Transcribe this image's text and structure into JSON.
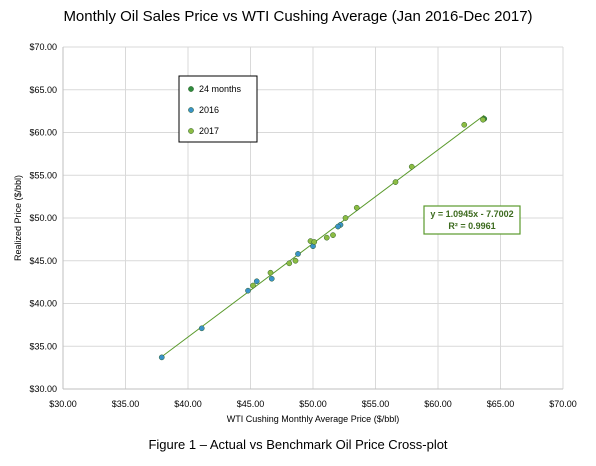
{
  "chart_data": {
    "type": "scatter",
    "title": "Monthly Oil Sales Price vs WTI Cushing Average (Jan 2016-Dec 2017)",
    "xlabel": "WTI Cushing Monthly Average Price ($/bbl)",
    "ylabel": "Realized Price ($/bbl)",
    "xlim": [
      30,
      70
    ],
    "ylim": [
      30,
      70
    ],
    "x_ticks": [
      30,
      35,
      40,
      45,
      50,
      55,
      60,
      65,
      70
    ],
    "y_ticks": [
      30,
      35,
      40,
      45,
      50,
      55,
      60,
      65,
      70
    ],
    "x_tick_labels": [
      "$30.00",
      "$35.00",
      "$40.00",
      "$45.00",
      "$50.00",
      "$55.00",
      "$60.00",
      "$65.00",
      "$70.00"
    ],
    "y_tick_labels": [
      "$30.00",
      "$35.00",
      "$40.00",
      "$45.00",
      "$50.00",
      "$55.00",
      "$60.00",
      "$65.00",
      "$70.00"
    ],
    "grid": true,
    "legend_position": "top-left",
    "series": [
      {
        "name": "24 months",
        "color": "#2e8b3e",
        "points": [
          [
            63.7,
            61.6
          ]
        ]
      },
      {
        "name": "2016",
        "color": "#3a93c8",
        "points": [
          [
            37.9,
            33.7
          ],
          [
            41.1,
            37.1
          ],
          [
            44.8,
            41.5
          ],
          [
            45.5,
            42.6
          ],
          [
            46.7,
            42.9
          ],
          [
            48.8,
            45.8
          ],
          [
            50.0,
            46.7
          ],
          [
            52.2,
            49.2
          ],
          [
            52.0,
            49.0
          ]
        ]
      },
      {
        "name": "2017",
        "color": "#8cbc43",
        "points": [
          [
            45.2,
            42.1
          ],
          [
            46.6,
            43.6
          ],
          [
            48.1,
            44.7
          ],
          [
            48.6,
            45.0
          ],
          [
            49.8,
            47.3
          ],
          [
            50.1,
            47.2
          ],
          [
            51.1,
            47.7
          ],
          [
            51.6,
            48.0
          ],
          [
            52.6,
            50.0
          ],
          [
            53.5,
            51.2
          ],
          [
            56.6,
            54.2
          ],
          [
            57.9,
            56.0
          ],
          [
            62.1,
            60.9
          ],
          [
            63.6,
            61.5
          ]
        ]
      }
    ],
    "trendline": {
      "slope": 1.0945,
      "intercept": -7.7002,
      "x_range": [
        38,
        63.7
      ],
      "color": "#5a9a2c",
      "equation": "y = 1.0945x - 7.7002",
      "r_squared": "R² = 0.9961"
    }
  },
  "caption": "Figure 1 – Actual vs Benchmark Oil Price Cross-plot"
}
